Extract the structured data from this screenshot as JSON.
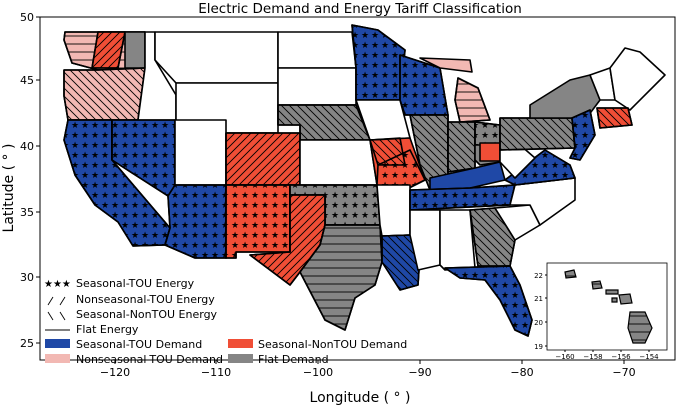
{
  "title": "Electric Demand and Energy Tariff Classification",
  "xlabel": "Longitude ( ° )",
  "ylabel": "Latitude ( ° )",
  "x_ticks": [
    "−120",
    "−110",
    "−100",
    "−90",
    "−80",
    "−70"
  ],
  "y_ticks": [
    "50",
    "45",
    "40",
    "35",
    "30",
    "25"
  ],
  "inset": {
    "x_ticks": [
      "−160",
      "−158",
      "−156",
      "−154"
    ],
    "y_ticks": [
      "22",
      "21",
      "20",
      "19"
    ]
  },
  "legend": {
    "energy": [
      {
        "label": "Seasonal-TOU Energy",
        "symbol": "stars"
      },
      {
        "label": "Nonseasonal-TOU Energy",
        "symbol": "forward-hatch"
      },
      {
        "label": "Seasonal-NonTOU Energy",
        "symbol": "back-hatch"
      },
      {
        "label": "Flat Energy",
        "symbol": "line"
      }
    ],
    "demand": [
      {
        "label": "Seasonal-TOU Demand",
        "color": "#1f48a6"
      },
      {
        "label": "Nonseasonal-TOU Demand",
        "color": "#f2b8b3"
      },
      {
        "label": "Seasonal-NonTOU Demand",
        "color": "#f04e36"
      },
      {
        "label": "Flat Demand",
        "color": "#858585"
      }
    ]
  },
  "colors": {
    "seasonal_tou_demand": "#1f48a6",
    "nonseasonal_tou_demand": "#f2b8b3",
    "seasonal_nontou_demand": "#f04e36",
    "flat_demand": "#858585",
    "no_demand": "#ffffff"
  }
}
